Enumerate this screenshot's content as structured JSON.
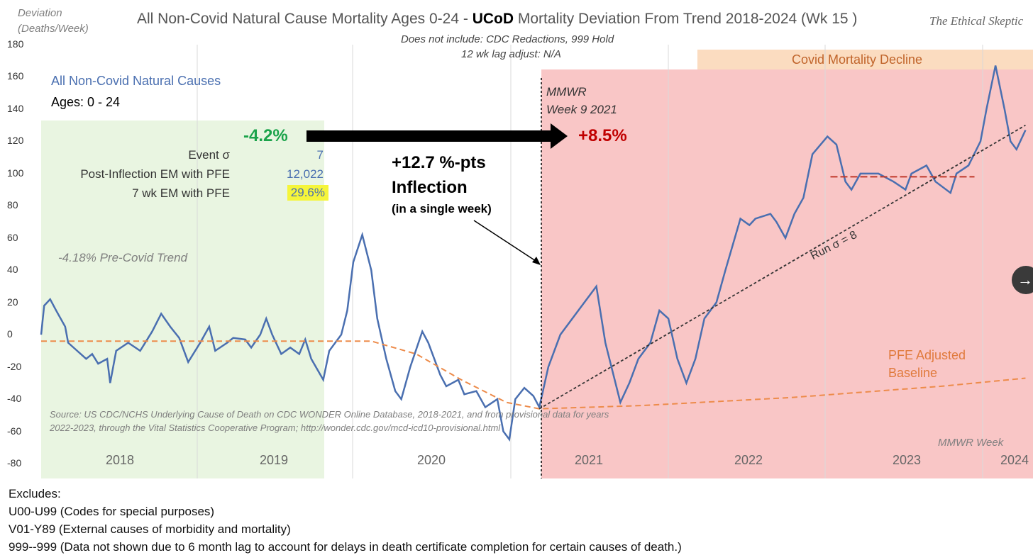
{
  "chart_data": {
    "type": "line",
    "title_pre": "All Non-Covid Natural Cause Mortality Ages 0-24 - ",
    "title_bold": "UCoD",
    "title_post": " Mortality Deviation From Trend  2018-2024 (Wk 15 )",
    "brand": "The Ethical Skeptic",
    "subtitle1": "Does not include: CDC Redactions, 999 Hold",
    "subtitle2": "12 wk lag adjust: N/A",
    "ylabel1": "Deviation",
    "ylabel2": "(Deaths/Week)",
    "xlabel": "MMWR Week",
    "ylim": [
      -80,
      180
    ],
    "yticks": [
      180,
      160,
      140,
      120,
      100,
      80,
      60,
      40,
      20,
      0,
      -20,
      -40,
      -60,
      -80
    ],
    "years": [
      "2018",
      "2019",
      "2020",
      "2021",
      "2022",
      "2023",
      "2024"
    ],
    "series": [
      {
        "name": "All Non-Covid Natural Causes",
        "color": "#4a6fb0",
        "points": [
          [
            0,
            0
          ],
          [
            1,
            18
          ],
          [
            3,
            22
          ],
          [
            5,
            15
          ],
          [
            8,
            5
          ],
          [
            9,
            -5
          ],
          [
            12,
            -10
          ],
          [
            15,
            -15
          ],
          [
            17,
            -12
          ],
          [
            19,
            -18
          ],
          [
            22,
            -15
          ],
          [
            23,
            -30
          ],
          [
            25,
            -10
          ],
          [
            29,
            -5
          ],
          [
            33,
            -10
          ],
          [
            37,
            2
          ],
          [
            40,
            13
          ],
          [
            43,
            5
          ],
          [
            46,
            -2
          ],
          [
            49,
            -17
          ],
          [
            53,
            -5
          ],
          [
            56,
            5
          ],
          [
            58,
            -10
          ],
          [
            62,
            -5
          ],
          [
            64,
            -2
          ],
          [
            68,
            -3
          ],
          [
            70,
            -8
          ],
          [
            73,
            0
          ],
          [
            75,
            10
          ],
          [
            77,
            0
          ],
          [
            80,
            -12
          ],
          [
            83,
            -8
          ],
          [
            86,
            -12
          ],
          [
            88,
            -3
          ],
          [
            90,
            -15
          ],
          [
            94,
            -28
          ],
          [
            96,
            -10
          ],
          [
            100,
            0
          ],
          [
            102,
            15
          ],
          [
            104,
            45
          ],
          [
            107,
            62
          ],
          [
            110,
            40
          ],
          [
            112,
            10
          ],
          [
            115,
            -15
          ],
          [
            118,
            -35
          ],
          [
            120,
            -40
          ],
          [
            123,
            -20
          ],
          [
            127,
            2
          ],
          [
            129,
            -5
          ],
          [
            133,
            -25
          ],
          [
            135,
            -32
          ],
          [
            139,
            -28
          ],
          [
            141,
            -37
          ],
          [
            145,
            -35
          ],
          [
            148,
            -45
          ],
          [
            152,
            -40
          ],
          [
            154,
            -60
          ],
          [
            156,
            -65
          ],
          [
            158,
            -40
          ],
          [
            161,
            -33
          ],
          [
            164,
            -38
          ],
          [
            166,
            -45
          ],
          [
            169,
            -20
          ],
          [
            173,
            0
          ],
          [
            175,
            5
          ],
          [
            179,
            15
          ],
          [
            185,
            30
          ],
          [
            188,
            -5
          ],
          [
            193,
            -42
          ],
          [
            196,
            -30
          ],
          [
            199,
            -15
          ],
          [
            203,
            -5
          ],
          [
            206,
            15
          ],
          [
            209,
            10
          ],
          [
            212,
            -15
          ],
          [
            215,
            -30
          ],
          [
            218,
            -15
          ],
          [
            221,
            10
          ],
          [
            225,
            20
          ],
          [
            228,
            40
          ],
          [
            233,
            72
          ],
          [
            236,
            68
          ],
          [
            238,
            72
          ],
          [
            243,
            75
          ],
          [
            245,
            70
          ],
          [
            248,
            60
          ],
          [
            251,
            75
          ],
          [
            254,
            85
          ],
          [
            257,
            112
          ],
          [
            262,
            123
          ],
          [
            265,
            118
          ],
          [
            268,
            95
          ],
          [
            270,
            90
          ],
          [
            273,
            100
          ],
          [
            279,
            100
          ],
          [
            284,
            95
          ],
          [
            288,
            90
          ],
          [
            290,
            100
          ],
          [
            295,
            105
          ],
          [
            298,
            95
          ],
          [
            303,
            88
          ],
          [
            305,
            100
          ],
          [
            309,
            105
          ],
          [
            313,
            120
          ],
          [
            315,
            140
          ],
          [
            318,
            167
          ],
          [
            321,
            140
          ],
          [
            323,
            120
          ],
          [
            325,
            115
          ],
          [
            328,
            127
          ]
        ]
      },
      {
        "name": "PFE Adjusted Baseline",
        "color": "#ed8b4a",
        "points": [
          [
            0,
            -4
          ],
          [
            110,
            -4
          ],
          [
            125,
            -12
          ],
          [
            140,
            -28
          ],
          [
            155,
            -42
          ],
          [
            166,
            -46
          ],
          [
            200,
            -44
          ],
          [
            250,
            -39
          ],
          [
            300,
            -32
          ],
          [
            328,
            -27
          ]
        ]
      },
      {
        "name": "Run trend",
        "color": "#333333",
        "points": [
          [
            166,
            -46
          ],
          [
            328,
            130
          ]
        ]
      },
      {
        "name": "Plateau",
        "color": "#c0392b",
        "points": [
          [
            263,
            98
          ],
          [
            311,
            98
          ]
        ]
      }
    ],
    "annotations": {
      "series_label": "All Non-Covid Natural Causes",
      "ages": "Ages: 0 - 24",
      "pre_pct": "-4.2%",
      "post_pct": "+8.5%",
      "mmwr1": "MMWR",
      "mmwr2": "Week 9 2021",
      "stat1_label": "Event σ",
      "stat1_value": "7",
      "stat2_label": "Post-Inflection EM with PFE",
      "stat2_value": "12,022",
      "stat3_label": "7 wk EM with PFE",
      "stat3_value": "29.6%",
      "infl1": "+12.7 %-pts",
      "infl2": "Inflection",
      "infl3": "(in a single week)",
      "pre_trend": "-4.18% Pre-Covid Trend",
      "covid_decline": "Covid Mortality Decline",
      "run": "Run σ = 8",
      "pfe1": "PFE Adjusted",
      "pfe2": "Baseline",
      "source1": "Source: US CDC/NCHS Underlying Cause of Death on CDC WONDER Online Database, 2018-2021, and from provisional data for years",
      "source2": "2022-2023, through the Vital Statistics Cooperative Program; http://wonder.cdc.gov/mcd-icd10-provisional.html"
    }
  },
  "excludes": [
    "Excludes:",
    "U00-U99 (Codes for special purposes)",
    "V01-Y89 (External causes of morbidity and mortality)",
    "999--999 (Data not shown due to 6 month lag to account for delays in death certificate completion for certain causes of death.)"
  ]
}
